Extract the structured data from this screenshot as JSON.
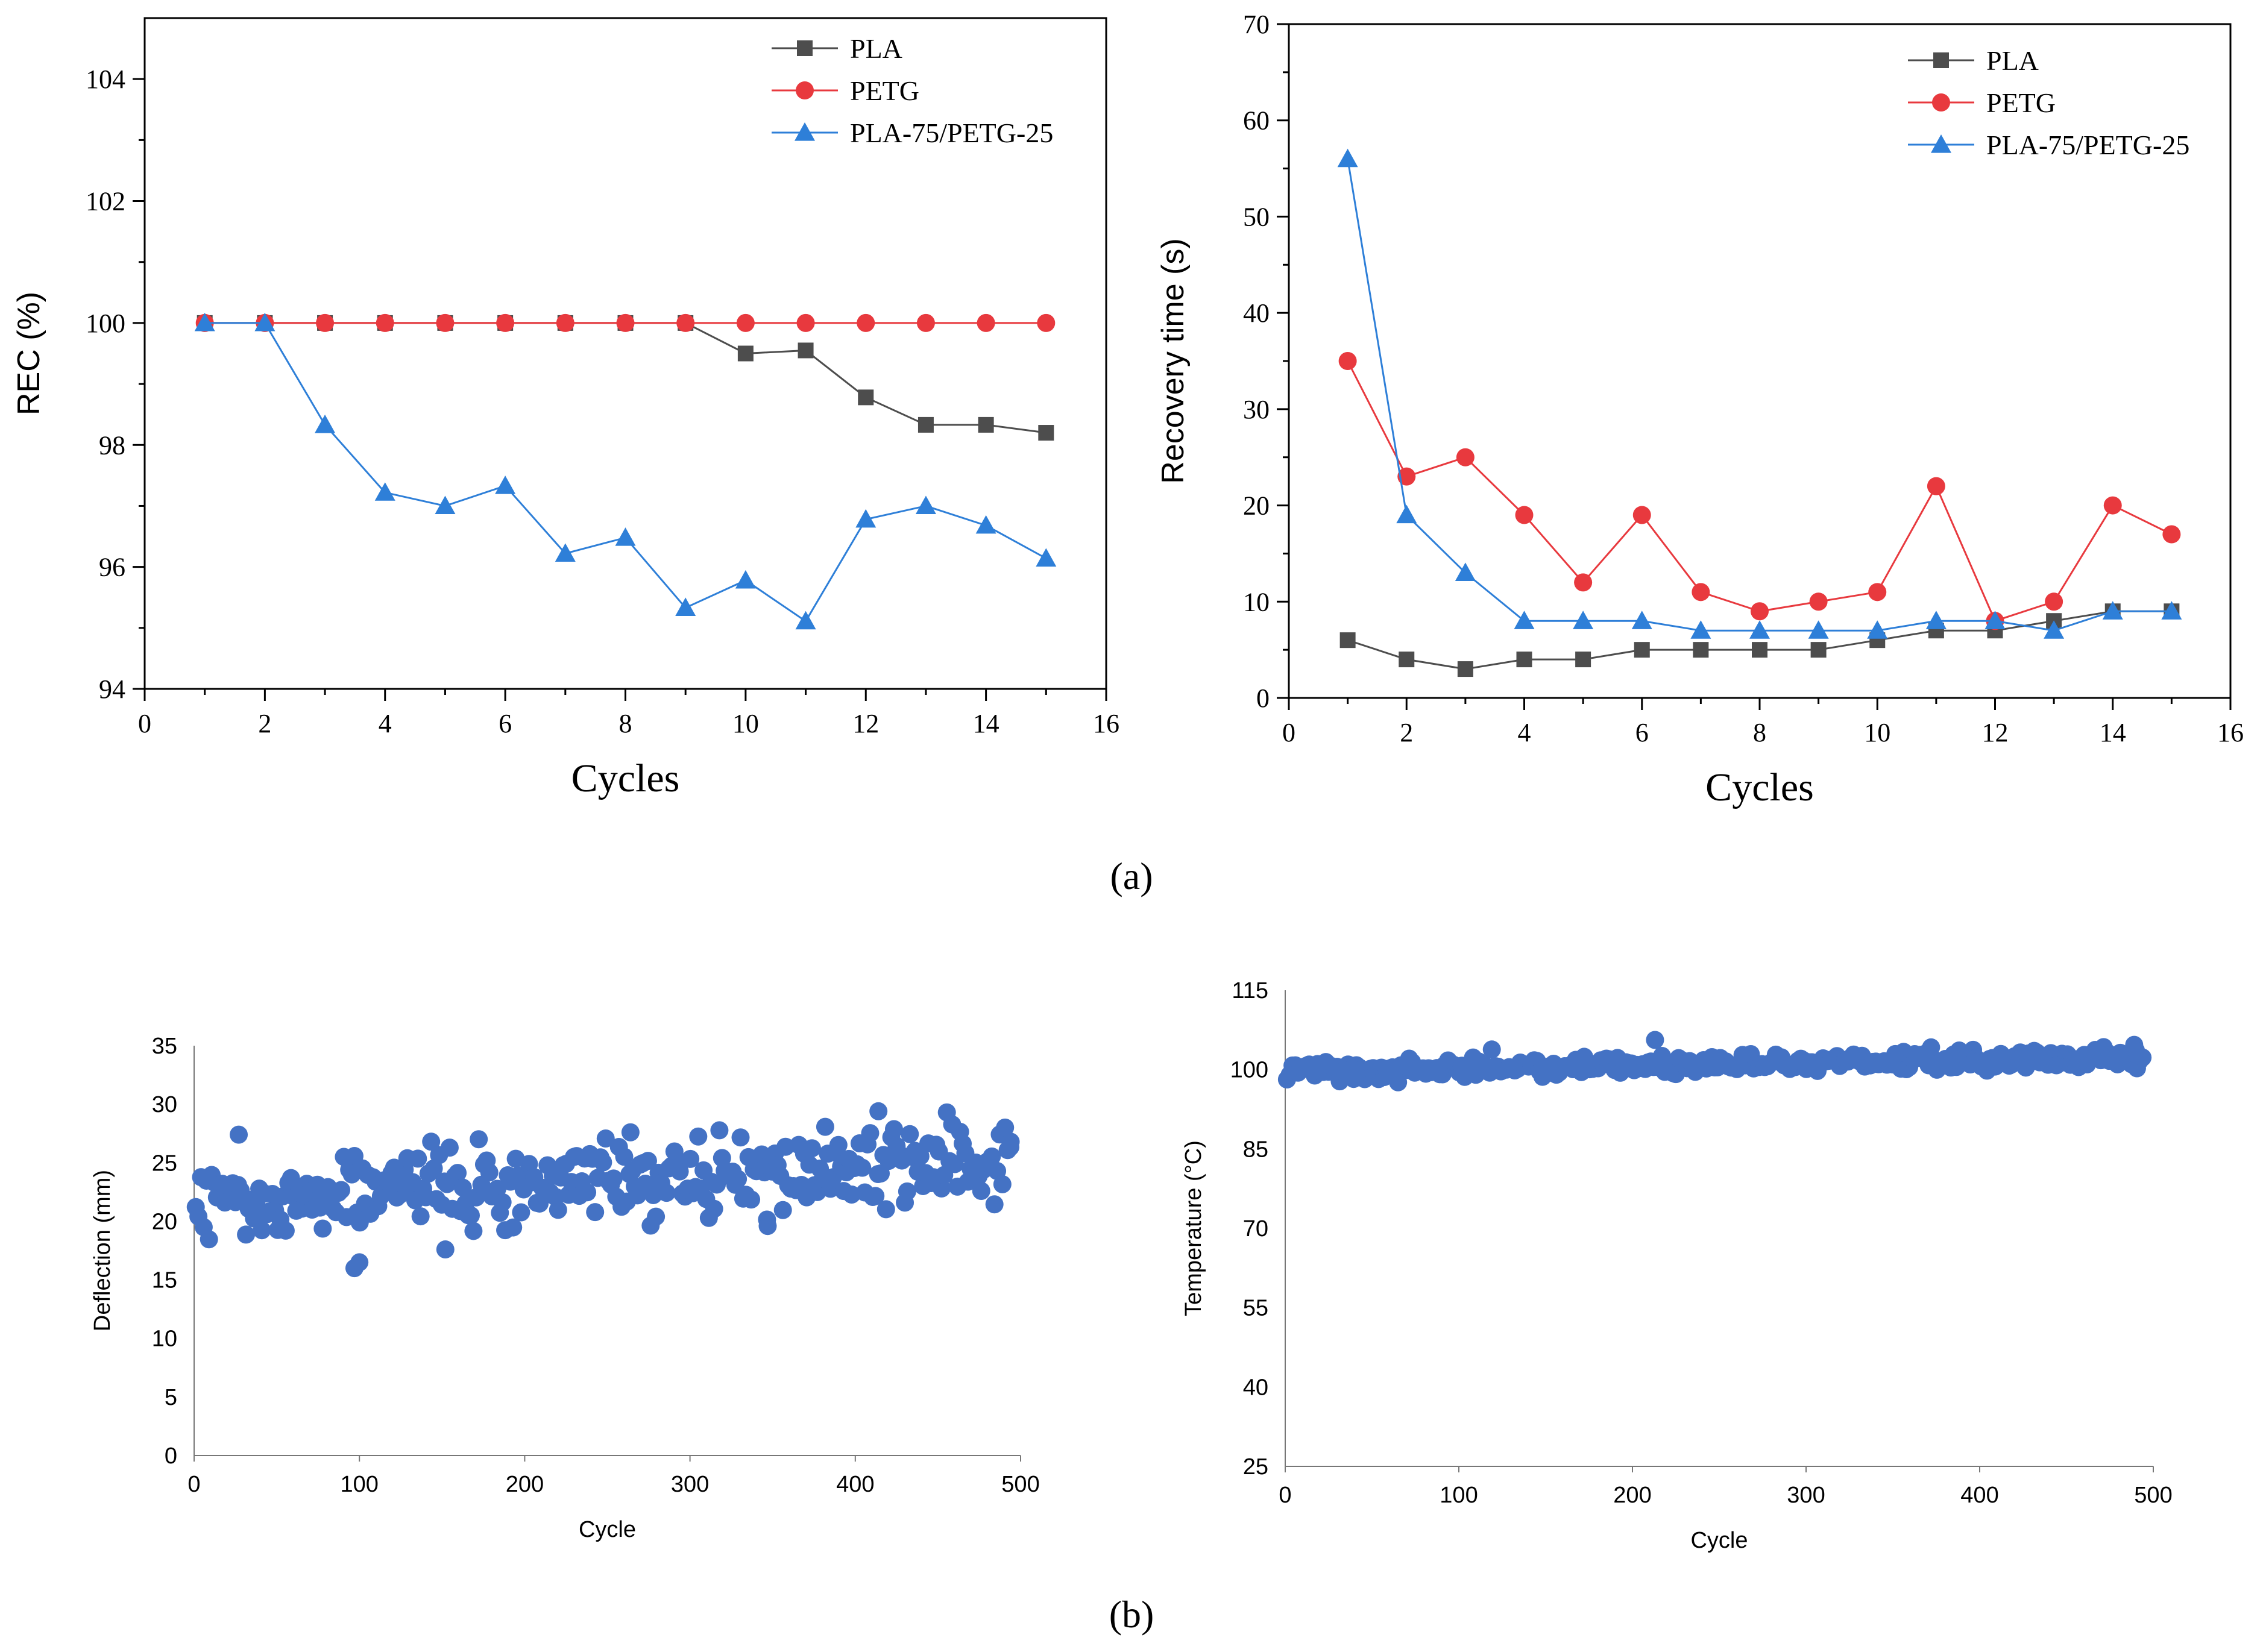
{
  "panel_labels": {
    "a": "(a)",
    "b": "(b)"
  },
  "colors": {
    "pla": "#4d4d4d",
    "petg": "#e8393e",
    "blend": "#2e7fd8",
    "scatter": "#4472c4",
    "axis": "#000000"
  },
  "chart_data": [
    {
      "id": "rec",
      "type": "line",
      "xlabel": "Cycles",
      "ylabel": "REC (%)",
      "xlim": [
        0,
        16
      ],
      "ylim": [
        94,
        105
      ],
      "xticks": [
        0,
        2,
        4,
        6,
        8,
        10,
        12,
        14,
        16
      ],
      "yticks": [
        94,
        96,
        98,
        100,
        102,
        104
      ],
      "x": [
        1,
        2,
        3,
        4,
        5,
        6,
        7,
        8,
        9,
        10,
        11,
        12,
        13,
        14,
        15
      ],
      "series": [
        {
          "name": "PLA",
          "color_key": "pla",
          "marker": "square",
          "values": [
            100,
            100,
            100,
            100,
            100,
            100,
            100,
            100,
            100,
            99.5,
            99.55,
            98.78,
            98.33,
            98.33,
            98.2
          ]
        },
        {
          "name": "PETG",
          "color_key": "petg",
          "marker": "circle",
          "values": [
            100,
            100,
            100,
            100,
            100,
            100,
            100,
            100,
            100,
            100,
            100,
            100,
            100,
            100,
            100
          ]
        },
        {
          "name": "PLA-75/PETG-25",
          "color_key": "blend",
          "marker": "triangle",
          "values": [
            100,
            100,
            98.33,
            97.22,
            97.0,
            97.33,
            96.22,
            96.48,
            95.33,
            95.78,
            95.11,
            96.78,
            97.0,
            96.68,
            96.14
          ]
        }
      ]
    },
    {
      "id": "recovery",
      "type": "line",
      "xlabel": "Cycles",
      "ylabel": "Recovery time (s)",
      "xlim": [
        0,
        16
      ],
      "ylim": [
        0,
        70
      ],
      "xticks": [
        0,
        2,
        4,
        6,
        8,
        10,
        12,
        14,
        16
      ],
      "yticks": [
        0,
        10,
        20,
        30,
        40,
        50,
        60,
        70
      ],
      "x": [
        1,
        2,
        3,
        4,
        5,
        6,
        7,
        8,
        9,
        10,
        11,
        12,
        13,
        14,
        15
      ],
      "series": [
        {
          "name": "PLA",
          "color_key": "pla",
          "marker": "square",
          "values": [
            6,
            4,
            3,
            4,
            4,
            5,
            5,
            5,
            5,
            6,
            7,
            7,
            8,
            9,
            9
          ]
        },
        {
          "name": "PETG",
          "color_key": "petg",
          "marker": "circle",
          "values": [
            35,
            23,
            25,
            19,
            12,
            19,
            11,
            9,
            10,
            11,
            22,
            8,
            10,
            20,
            17
          ]
        },
        {
          "name": "PLA-75/PETG-25",
          "color_key": "blend",
          "marker": "triangle",
          "values": [
            56,
            19,
            13,
            8,
            8,
            8,
            7,
            7,
            7,
            7,
            8,
            8,
            7,
            9,
            9
          ]
        }
      ]
    },
    {
      "id": "deflection",
      "type": "scatter",
      "xlabel": "Cycle",
      "ylabel": "Deflection (mm)",
      "xlim": [
        0,
        500
      ],
      "ylim": [
        0,
        35
      ],
      "xticks": [
        0,
        100,
        200,
        300,
        400,
        500
      ],
      "yticks": [
        0,
        5,
        10,
        15,
        20,
        25,
        30,
        35
      ],
      "trend": {
        "start_cycle": 1,
        "end_cycle": 494,
        "start_value": 21.5,
        "end_value": 25.5,
        "spread": 2.6
      },
      "highlights": [
        {
          "x": 27,
          "y": 27.4
        },
        {
          "x": 97,
          "y": 16.0
        },
        {
          "x": 100,
          "y": 16.5
        },
        {
          "x": 152,
          "y": 17.6
        },
        {
          "x": 264,
          "y": 27.6
        },
        {
          "x": 347,
          "y": 19.6
        },
        {
          "x": 414,
          "y": 29.4
        },
        {
          "x": 430,
          "y": 21.6
        },
        {
          "x": 494,
          "y": 26.8
        }
      ]
    },
    {
      "id": "temperature",
      "type": "scatter",
      "xlabel": "Cycle",
      "ylabel": "Temperature (°C)",
      "xlim": [
        0,
        500
      ],
      "ylim": [
        25,
        115
      ],
      "xticks": [
        0,
        100,
        200,
        300,
        400,
        500
      ],
      "yticks": [
        25,
        40,
        55,
        70,
        85,
        100,
        115
      ],
      "trend": {
        "start_cycle": 1,
        "end_cycle": 494,
        "start_value": 99.6,
        "end_value": 102.4,
        "spread": 1.4
      },
      "highlights": [
        {
          "x": 119,
          "y": 103.8
        },
        {
          "x": 213,
          "y": 105.6
        },
        {
          "x": 65,
          "y": 97.6
        },
        {
          "x": 372,
          "y": 104.2
        },
        {
          "x": 490,
          "y": 103.6
        }
      ]
    }
  ]
}
